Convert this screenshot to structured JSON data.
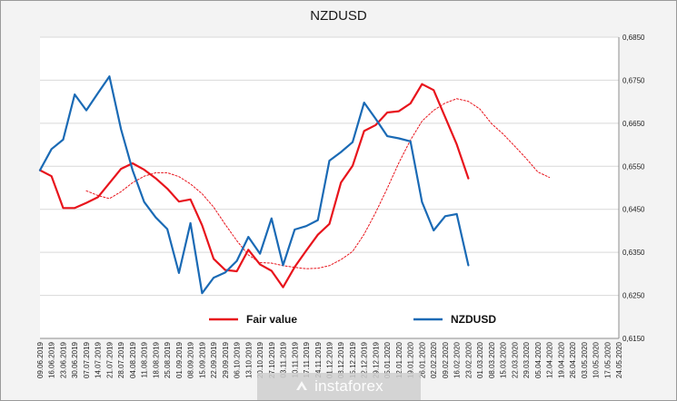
{
  "chart_data": {
    "type": "line",
    "title": "NZDUSD",
    "xlabel": "",
    "ylabel": "",
    "ylim": [
      0.615,
      0.685
    ],
    "y_ticks": [
      "0,6150",
      "0,6250",
      "0,6350",
      "0,6450",
      "0,6550",
      "0,6650",
      "0,6750",
      "0,6850"
    ],
    "y_tick_values": [
      0.615,
      0.625,
      0.635,
      0.645,
      0.655,
      0.665,
      0.675,
      0.685
    ],
    "x_labels": [
      "09.06.2019",
      "16.06.2019",
      "23.06.2019",
      "30.06.2019",
      "07.07.2019",
      "14.07.2019",
      "21.07.2019",
      "28.07.2019",
      "04.08.2019",
      "11.08.2019",
      "18.08.2019",
      "25.08.2019",
      "01.09.2019",
      "08.09.2019",
      "15.09.2019",
      "22.09.2019",
      "29.09.2019",
      "06.10.2019",
      "13.10.2019",
      "20.10.2019",
      "27.10.2019",
      "03.11.2019",
      "10.11.2019",
      "17.11.2019",
      "24.11.2019",
      "01.12.2019",
      "08.12.2019",
      "15.12.2019",
      "22.12.2019",
      "29.12.2019",
      "05.01.2020",
      "12.01.2020",
      "19.01.2020",
      "26.01.2020",
      "02.02.2020",
      "09.02.2020",
      "16.02.2020",
      "23.02.2020",
      "01.03.2020",
      "08.03.2020",
      "15.03.2020",
      "22.03.2020",
      "29.03.2020",
      "05.04.2020",
      "12.04.2020",
      "19.04.2020",
      "26.04.2020",
      "03.05.2020",
      "10.05.2020",
      "17.05.2020",
      "24.05.2020"
    ],
    "grid": true,
    "legend_position": "bottom-center",
    "series": [
      {
        "name": "Fair value",
        "style": "solid",
        "color": "#e8141c",
        "x_start": 0,
        "values": [
          0.6541,
          0.6527,
          0.6453,
          0.6453,
          0.6465,
          0.6478,
          0.6511,
          0.6544,
          0.6557,
          0.6542,
          0.6522,
          0.6498,
          0.6468,
          0.6473,
          0.6413,
          0.6335,
          0.6309,
          0.6306,
          0.6356,
          0.6322,
          0.6307,
          0.6269,
          0.6316,
          0.6354,
          0.6391,
          0.6416,
          0.6512,
          0.6551,
          0.6632,
          0.6646,
          0.6675,
          0.6678,
          0.6696,
          0.6741,
          0.6727,
          0.6664,
          0.6601,
          0.6522
        ]
      },
      {
        "name": "",
        "style": "dotted",
        "color": "#e8141c",
        "x_start": 4,
        "values": [
          0.6493,
          0.6482,
          0.6475,
          0.6491,
          0.6512,
          0.6527,
          0.6535,
          0.6535,
          0.6526,
          0.6509,
          0.6486,
          0.6455,
          0.6415,
          0.6377,
          0.6344,
          0.6326,
          0.6325,
          0.6319,
          0.6315,
          0.6312,
          0.6313,
          0.6319,
          0.6333,
          0.6352,
          0.6392,
          0.6443,
          0.6499,
          0.6558,
          0.6611,
          0.6655,
          0.668,
          0.6697,
          0.6707,
          0.6701,
          0.6683,
          0.6649,
          0.6625,
          0.6597,
          0.6568,
          0.6537,
          0.6524
        ]
      },
      {
        "name": "NZDUSD",
        "style": "solid",
        "color": "#1a6ab5",
        "x_start": 0,
        "values": [
          0.6541,
          0.659,
          0.6612,
          0.6717,
          0.668,
          0.672,
          0.6759,
          0.6636,
          0.6541,
          0.6467,
          0.6431,
          0.6404,
          0.6302,
          0.6418,
          0.6255,
          0.6291,
          0.6303,
          0.633,
          0.6386,
          0.6347,
          0.6429,
          0.632,
          0.6403,
          0.6411,
          0.6425,
          0.6563,
          0.6583,
          0.6606,
          0.6698,
          0.666,
          0.662,
          0.6615,
          0.6608,
          0.6467,
          0.6401,
          0.6434,
          0.6439,
          0.632
        ]
      }
    ]
  },
  "watermark": {
    "text": "instaforex"
  },
  "colors": {
    "fair_value": "#e8141c",
    "nzdusd": "#1a6ab5",
    "plot_background": "#ffffff",
    "gridline": "#d9d9d9"
  }
}
